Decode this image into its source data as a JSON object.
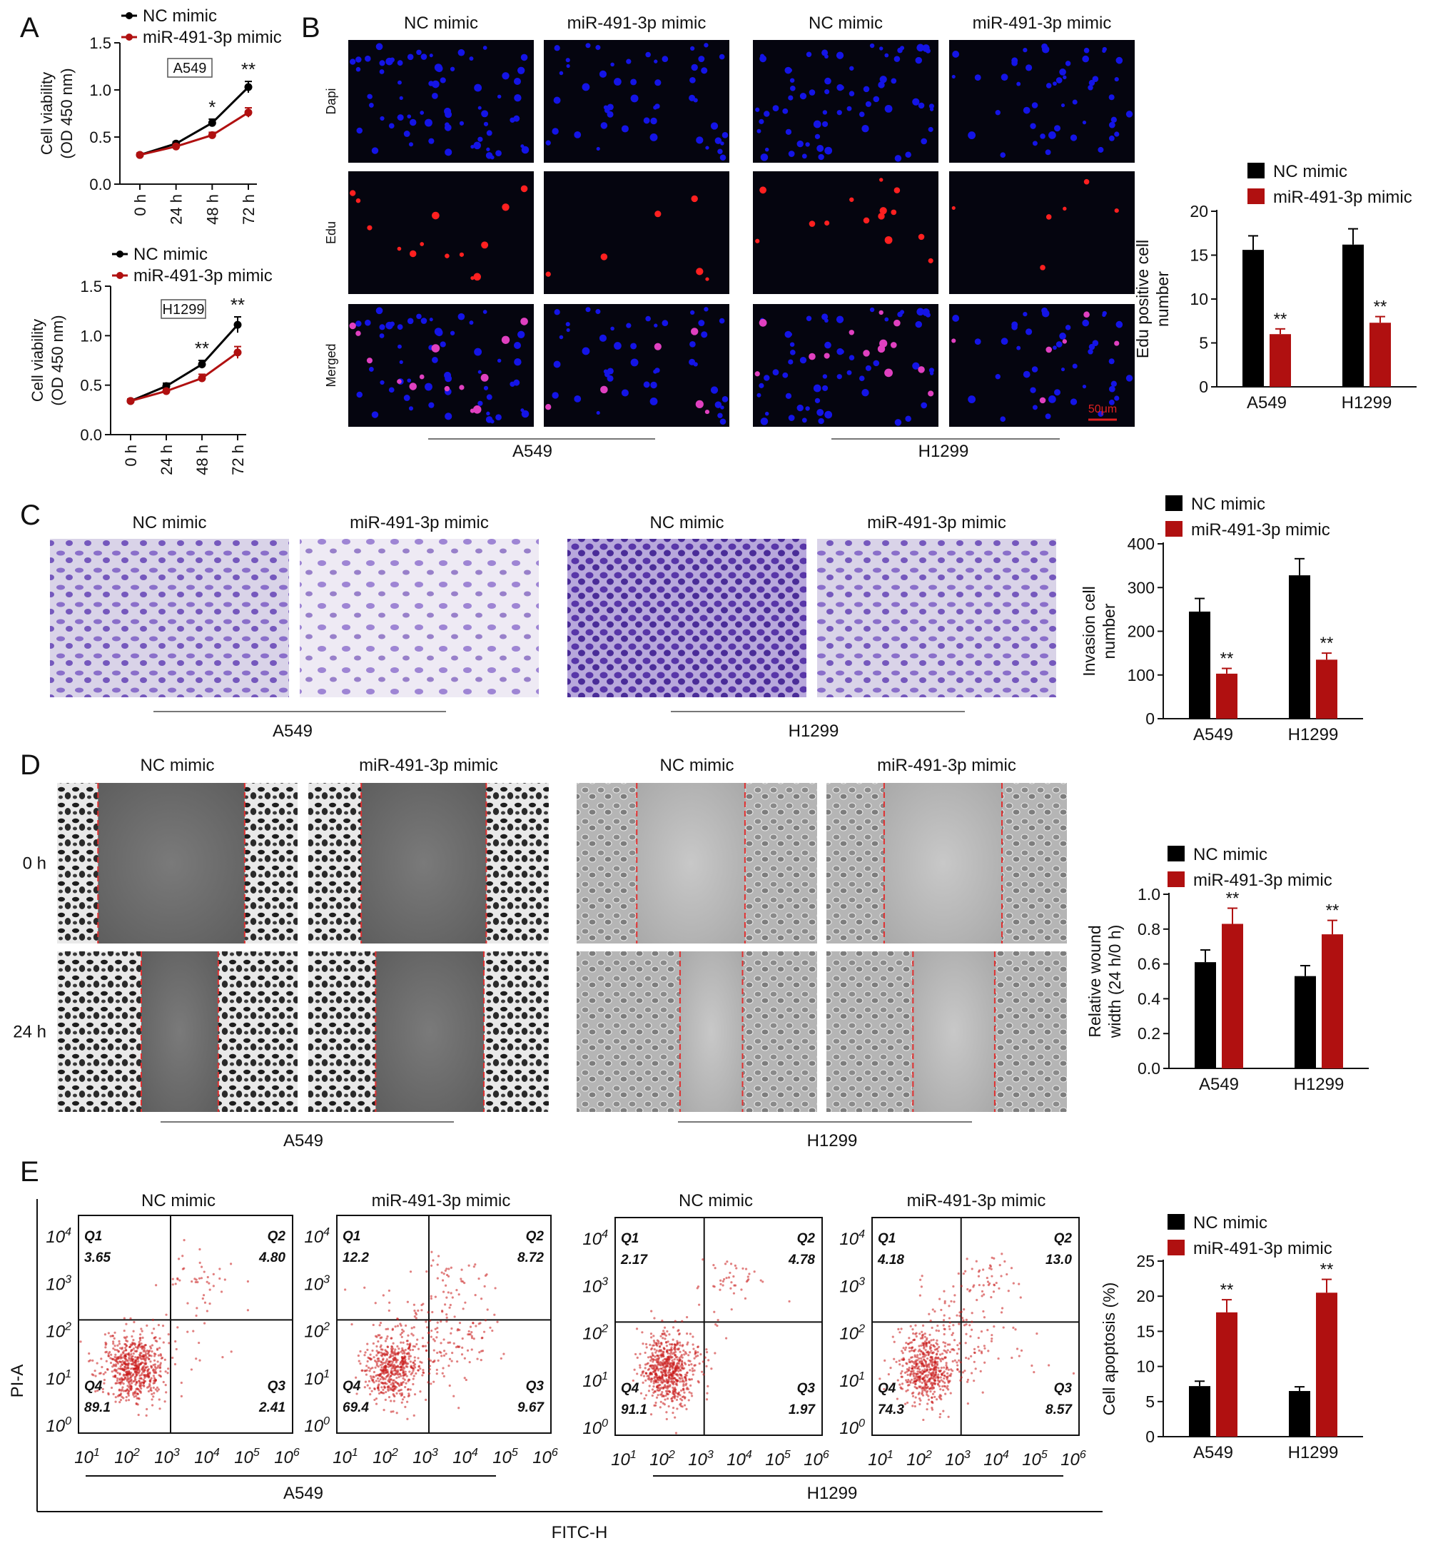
{
  "panel_letters": [
    "A",
    "B",
    "C",
    "D",
    "E"
  ],
  "legend": {
    "nc": "NC mimic",
    "mir": "miR-491-3p mimic"
  },
  "colors": {
    "nc": "#000000",
    "mir": "#b01010",
    "axis": "#111111",
    "dapi": "#1414e6",
    "edu": "#ff2020",
    "crystal": "#6a48b8"
  },
  "cell_lines": [
    "A549",
    "H1299"
  ],
  "panel_B": {
    "row_labels": [
      "Dapi",
      "Edu",
      "Merged"
    ],
    "col_labels": [
      "NC mimic",
      "miR-491-3p mimic",
      "NC mimic",
      "miR-491-3p mimic"
    ],
    "scale_bar": "50μm"
  },
  "panel_C": {
    "col_labels": [
      "NC mimic",
      "miR-491-3p mimic",
      "NC mimic",
      "miR-491-3p mimic"
    ]
  },
  "panel_D": {
    "col_labels": [
      "NC mimic",
      "miR-491-3p mimic",
      "NC mimic",
      "miR-491-3p mimic"
    ],
    "row_labels": [
      "0 h",
      "24 h"
    ]
  },
  "panel_E": {
    "col_labels": [
      "NC mimic",
      "miR-491-3p mimic",
      "NC mimic",
      "miR-491-3p mimic"
    ],
    "y_axis_label": "PI-A",
    "x_axis_label": "FITC-H",
    "quadrant_names": [
      "Q1",
      "Q2",
      "Q3",
      "Q4"
    ],
    "plots": [
      {
        "Q1": "3.65",
        "Q2": "4.80",
        "Q3": "2.41",
        "Q4": "89.1"
      },
      {
        "Q1": "12.2",
        "Q2": "8.72",
        "Q3": "9.67",
        "Q4": "69.4"
      },
      {
        "Q1": "2.17",
        "Q2": "4.78",
        "Q3": "1.97",
        "Q4": "91.1"
      },
      {
        "Q1": "4.18",
        "Q2": "13.0",
        "Q3": "8.57",
        "Q4": "74.3"
      }
    ]
  },
  "chart_data": [
    {
      "id": "A_A549",
      "type": "line",
      "box_label": "A549",
      "ylabel": "Cell viability (OD 450 nm)",
      "ylabel_lines": [
        "Cell viability",
        "(OD 450 nm)"
      ],
      "x": [
        "0 h",
        "24 h",
        "48 h",
        "72 h"
      ],
      "ylim": [
        0,
        1.5
      ],
      "yticks": [
        "0.0",
        "0.5",
        "1.0",
        "1.5"
      ],
      "series": [
        {
          "name": "NC mimic",
          "values": [
            0.31,
            0.43,
            0.65,
            1.03
          ],
          "errors": [
            0.02,
            0.02,
            0.04,
            0.06
          ]
        },
        {
          "name": "miR-491-3p mimic",
          "values": [
            0.31,
            0.4,
            0.52,
            0.76
          ],
          "errors": [
            0.02,
            0.02,
            0.03,
            0.05
          ]
        }
      ],
      "annotations": [
        "",
        "",
        "*",
        "**"
      ]
    },
    {
      "id": "A_H1299",
      "type": "line",
      "box_label": "H1299",
      "ylabel": "Cell viability (OD 450 nm)",
      "ylabel_lines": [
        "Cell viability",
        "(OD 450 nm)"
      ],
      "x": [
        "0 h",
        "24 h",
        "48 h",
        "72 h"
      ],
      "ylim": [
        0,
        1.5
      ],
      "yticks": [
        "0.0",
        "0.5",
        "1.0",
        "1.5"
      ],
      "series": [
        {
          "name": "NC mimic",
          "values": [
            0.34,
            0.49,
            0.71,
            1.11
          ],
          "errors": [
            0.02,
            0.03,
            0.04,
            0.08
          ]
        },
        {
          "name": "miR-491-3p mimic",
          "values": [
            0.34,
            0.44,
            0.57,
            0.83
          ],
          "errors": [
            0.02,
            0.02,
            0.04,
            0.06
          ]
        }
      ],
      "annotations": [
        "",
        "",
        "**",
        "**"
      ]
    },
    {
      "id": "B_bar",
      "type": "bar",
      "ylabel": "Edu positive cell number",
      "ylabel_lines": [
        "Edu positive cell",
        "number"
      ],
      "categories": [
        "A549",
        "H1299"
      ],
      "ylim": [
        0,
        20
      ],
      "yticks": [
        "0",
        "5",
        "10",
        "15",
        "20"
      ],
      "series": [
        {
          "name": "NC mimic",
          "values": [
            15.6,
            16.2
          ],
          "errors": [
            1.6,
            1.8
          ]
        },
        {
          "name": "miR-491-3p mimic",
          "values": [
            6.0,
            7.3
          ],
          "errors": [
            0.6,
            0.7
          ]
        }
      ],
      "annotations": [
        "**",
        "**"
      ]
    },
    {
      "id": "C_bar",
      "type": "bar",
      "ylabel": "Invasion cell number",
      "ylabel_lines": [
        "Invasion cell",
        "number"
      ],
      "categories": [
        "A549",
        "H1299"
      ],
      "ylim": [
        0,
        400
      ],
      "yticks": [
        "0",
        "100",
        "200",
        "300",
        "400"
      ],
      "series": [
        {
          "name": "NC mimic",
          "values": [
            245,
            328
          ],
          "errors": [
            30,
            38
          ]
        },
        {
          "name": "miR-491-3p mimic",
          "values": [
            103,
            135
          ],
          "errors": [
            12,
            15
          ]
        }
      ],
      "annotations": [
        "**",
        "**"
      ]
    },
    {
      "id": "D_bar",
      "type": "bar",
      "ylabel": "Relative wound width (24 h/0 h)",
      "ylabel_lines": [
        "Relative wound",
        "width (24 h/0 h)"
      ],
      "categories": [
        "A549",
        "H1299"
      ],
      "ylim": [
        0,
        1.0
      ],
      "yticks": [
        "0.0",
        "0.2",
        "0.4",
        "0.6",
        "0.8",
        "1.0"
      ],
      "series": [
        {
          "name": "NC mimic",
          "values": [
            0.61,
            0.53
          ],
          "errors": [
            0.07,
            0.06
          ]
        },
        {
          "name": "miR-491-3p mimic",
          "values": [
            0.83,
            0.77
          ],
          "errors": [
            0.09,
            0.08
          ]
        }
      ],
      "annotations": [
        "**",
        "**"
      ]
    },
    {
      "id": "E_bar",
      "type": "bar",
      "ylabel": "Cell apoptosis (%)",
      "ylabel_lines": [
        "Cell apoptosis (%)"
      ],
      "categories": [
        "A549",
        "H1299"
      ],
      "ylim": [
        0,
        25
      ],
      "yticks": [
        "0",
        "5",
        "10",
        "15",
        "20",
        "25"
      ],
      "series": [
        {
          "name": "NC mimic",
          "values": [
            7.2,
            6.5
          ],
          "errors": [
            0.7,
            0.6
          ]
        },
        {
          "name": "miR-491-3p mimic",
          "values": [
            17.7,
            20.5
          ],
          "errors": [
            1.8,
            1.9
          ]
        }
      ],
      "annotations": [
        "**",
        "**"
      ]
    }
  ]
}
